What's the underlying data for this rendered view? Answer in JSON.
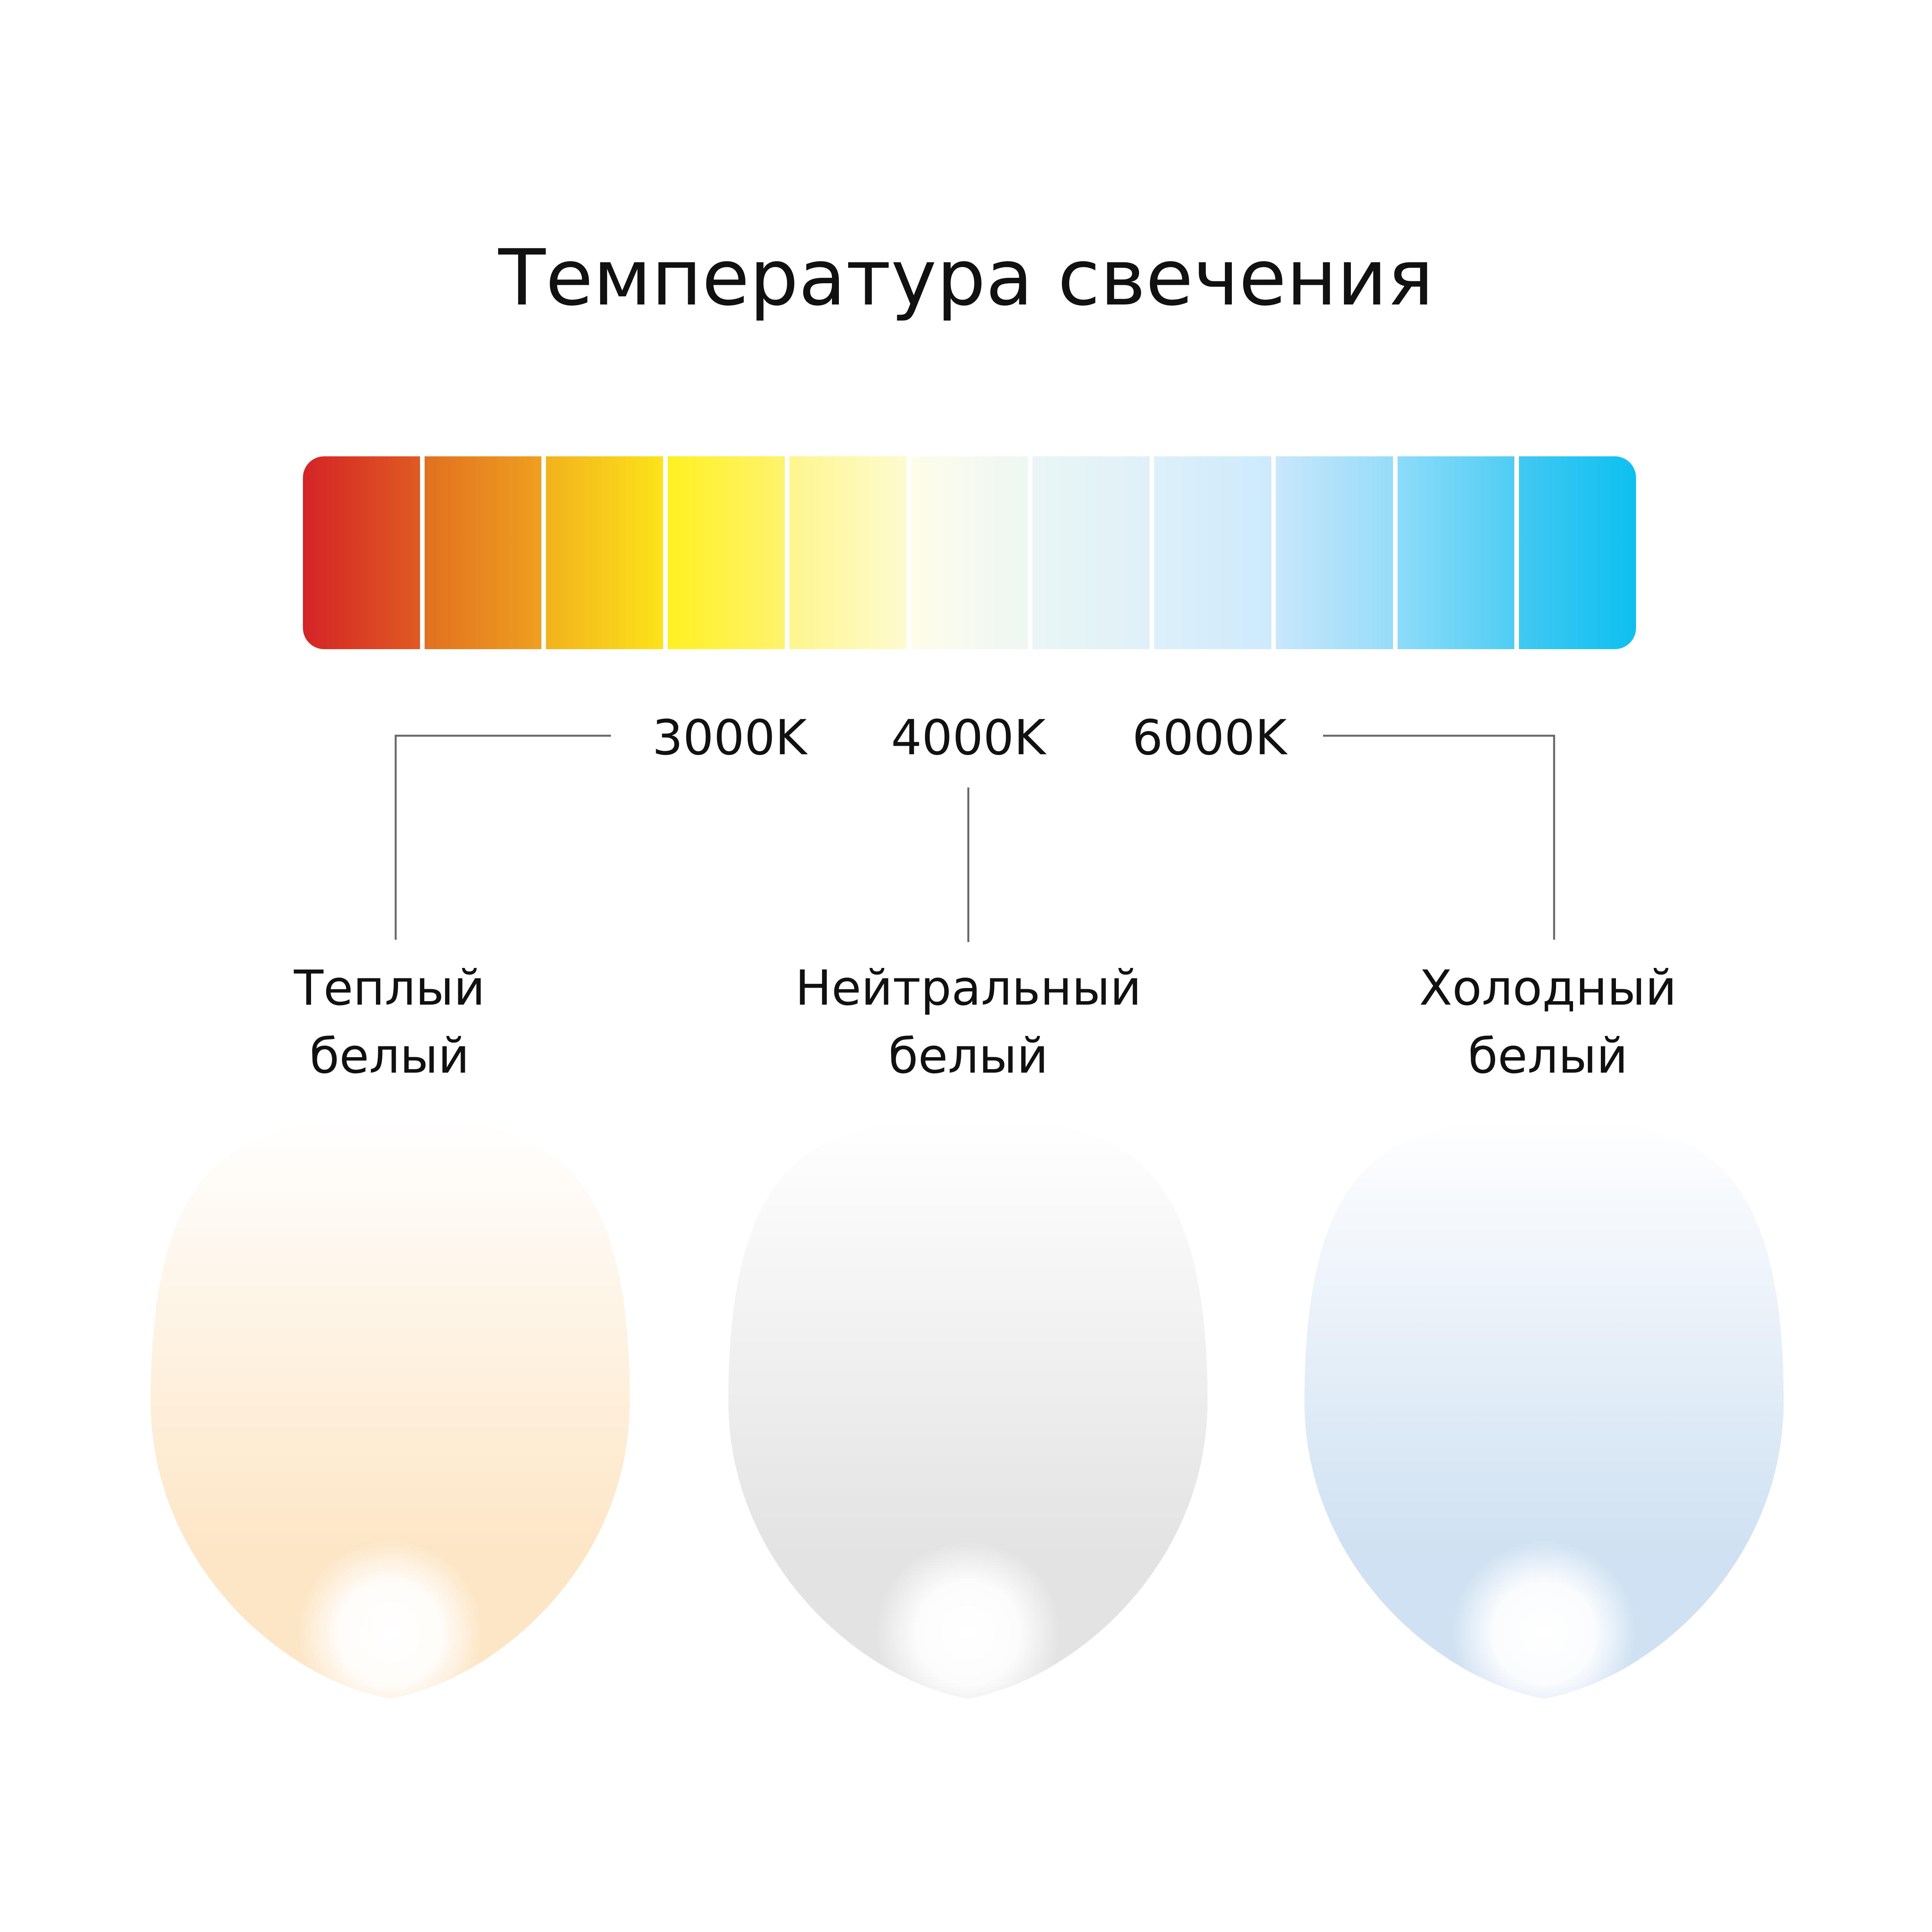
{
  "title": "Температура свечения",
  "scale": {
    "segments": [
      {
        "from": "#d42426",
        "to": "#e05a22"
      },
      {
        "from": "#e2701f",
        "to": "#eea020"
      },
      {
        "from": "#f2b21c",
        "to": "#fce31a"
      },
      {
        "from": "#fff121",
        "to": "#fff36e"
      },
      {
        "from": "#fef68d",
        "to": "#fdfbd0"
      },
      {
        "from": "#fefdea",
        "to": "#eef7f3"
      },
      {
        "from": "#eaf6f5",
        "to": "#dff0f8"
      },
      {
        "from": "#dcf0fa",
        "to": "#cdeafc"
      },
      {
        "from": "#c8e7fc",
        "to": "#96dcf8"
      },
      {
        "from": "#8ddcf9",
        "to": "#4fcdf4"
      },
      {
        "from": "#42c8f3",
        "to": "#0dc0f0"
      }
    ],
    "kelvin_labels": [
      "3000K",
      "4000K",
      "6000K"
    ]
  },
  "categories": [
    {
      "line1": "Теплый",
      "line2": "белый",
      "color": "#fde6c6"
    },
    {
      "line1": "Нейтральный",
      "line2": "белый",
      "color": "#e3e3e3"
    },
    {
      "line1": "Холодный",
      "line2": "белый",
      "color": "#cfe1f2"
    }
  ]
}
